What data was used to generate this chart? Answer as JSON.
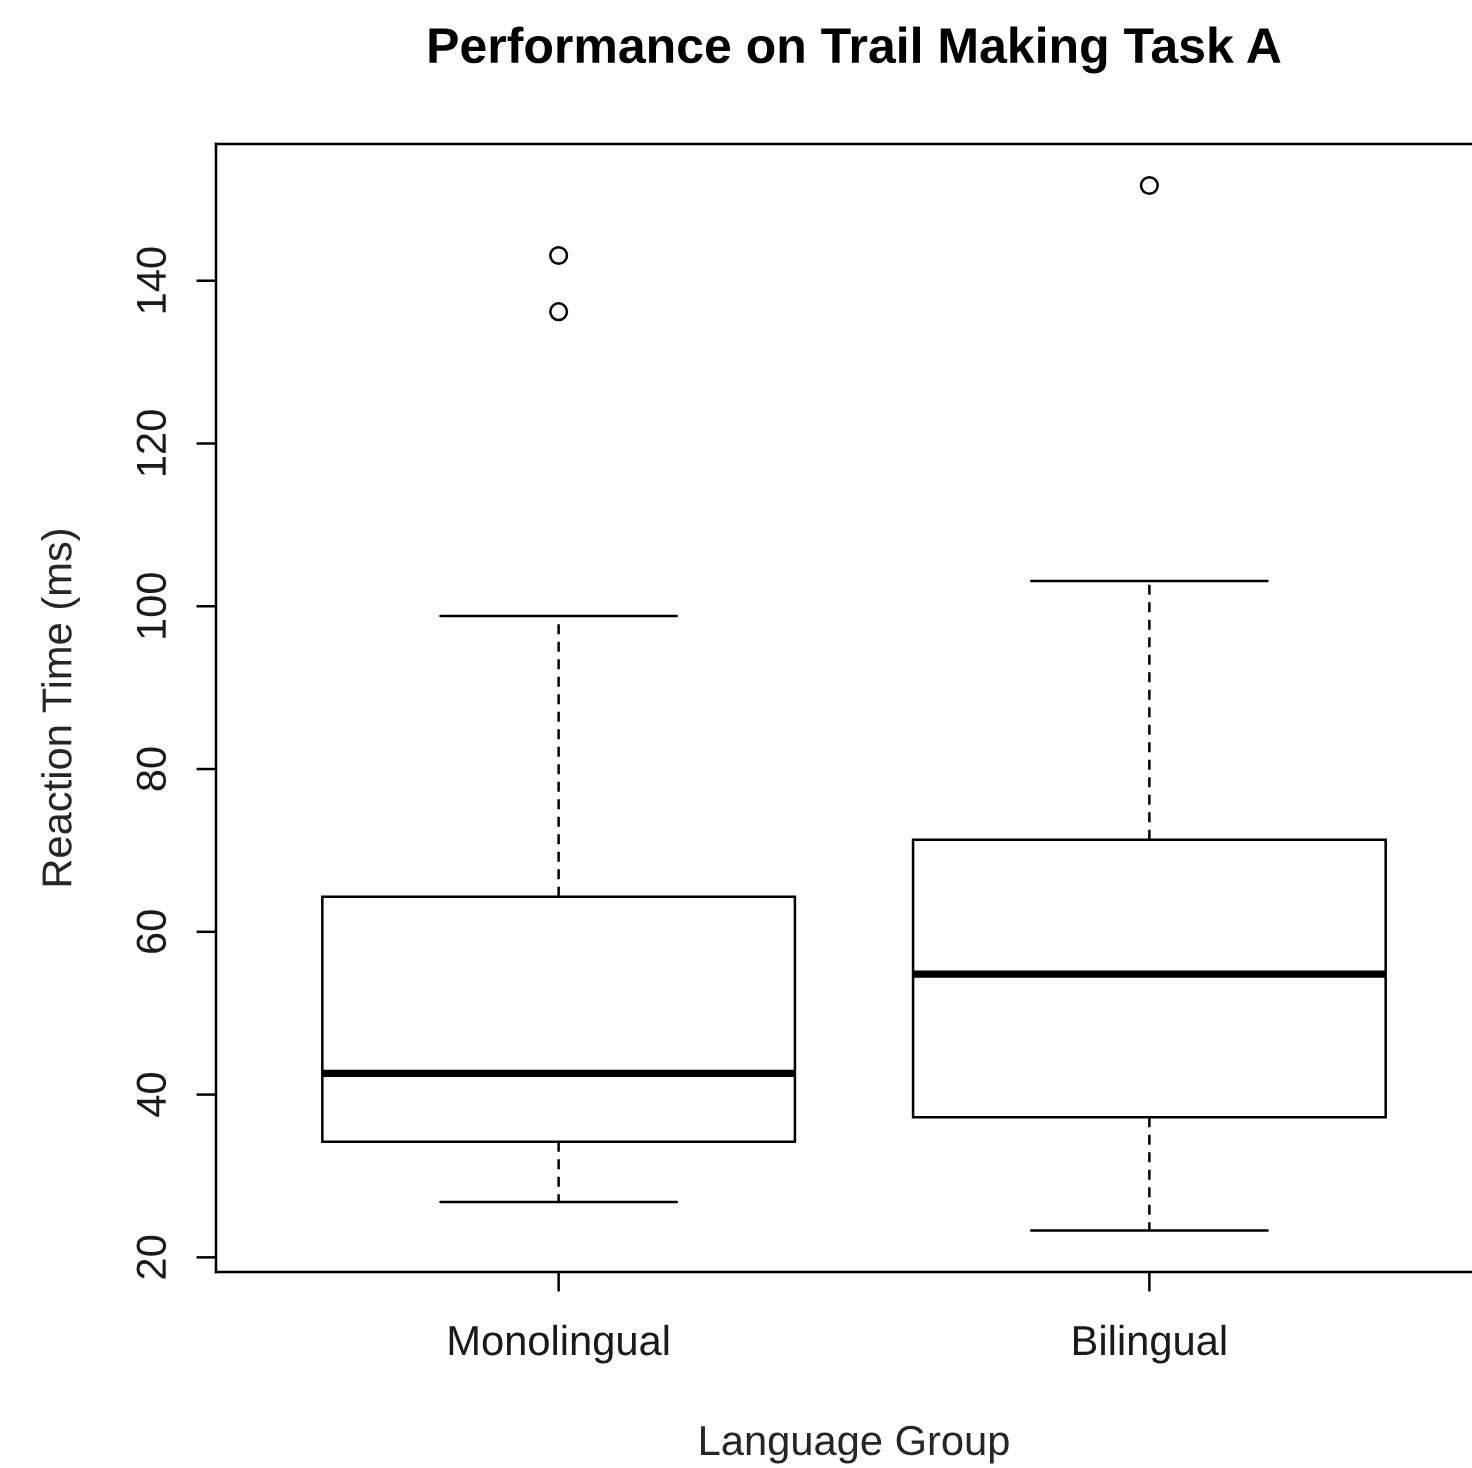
{
  "chart_data": {
    "type": "box",
    "title": "Performance on Trail Making Task A",
    "xlabel": "Language Group",
    "ylabel": "Reaction Time (ms)",
    "categories": [
      "Monolingual",
      "Bilingual"
    ],
    "boxes": [
      {
        "low": 26.8,
        "q1": 34.2,
        "median": 42.6,
        "q3": 64.3,
        "high": 98.8,
        "outliers": [
          136.2,
          143.1
        ]
      },
      {
        "low": 23.3,
        "q1": 37.2,
        "median": 54.8,
        "q3": 71.3,
        "high": 103.1,
        "outliers": [
          151.7
        ]
      }
    ],
    "ylim": [
      18.2,
      156.8
    ],
    "yticks": [
      20,
      40,
      60,
      80,
      100,
      120,
      140
    ],
    "marker": "circle",
    "line_style": "dashed"
  }
}
